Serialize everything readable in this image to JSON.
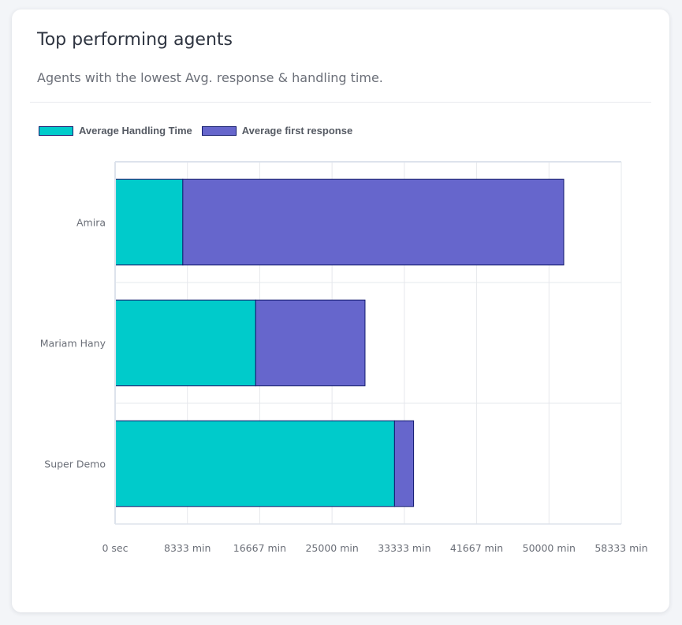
{
  "card": {
    "title": "Top performing agents",
    "subtitle": "Agents with the lowest Avg. response & handling time."
  },
  "chart_data": {
    "type": "bar",
    "orientation": "horizontal",
    "stacked": true,
    "categories": [
      "Amira",
      "Mariam Hany",
      "Super Demo"
    ],
    "series": [
      {
        "name": "Average Handling Time",
        "color": "#00cbcb",
        "values": [
          7800,
          16200,
          32200
        ]
      },
      {
        "name": "Average first response",
        "color": "#6666cc",
        "values": [
          43900,
          12600,
          2200
        ]
      }
    ],
    "x_ticks": [
      "0 sec",
      "8333 min",
      "16667 min",
      "25000 min",
      "33333 min",
      "41667 min",
      "50000 min",
      "58333 min"
    ],
    "xlim": [
      0,
      58333
    ],
    "grid": true,
    "legend_position": "top-left",
    "bar_border_color": "#121a6e"
  }
}
